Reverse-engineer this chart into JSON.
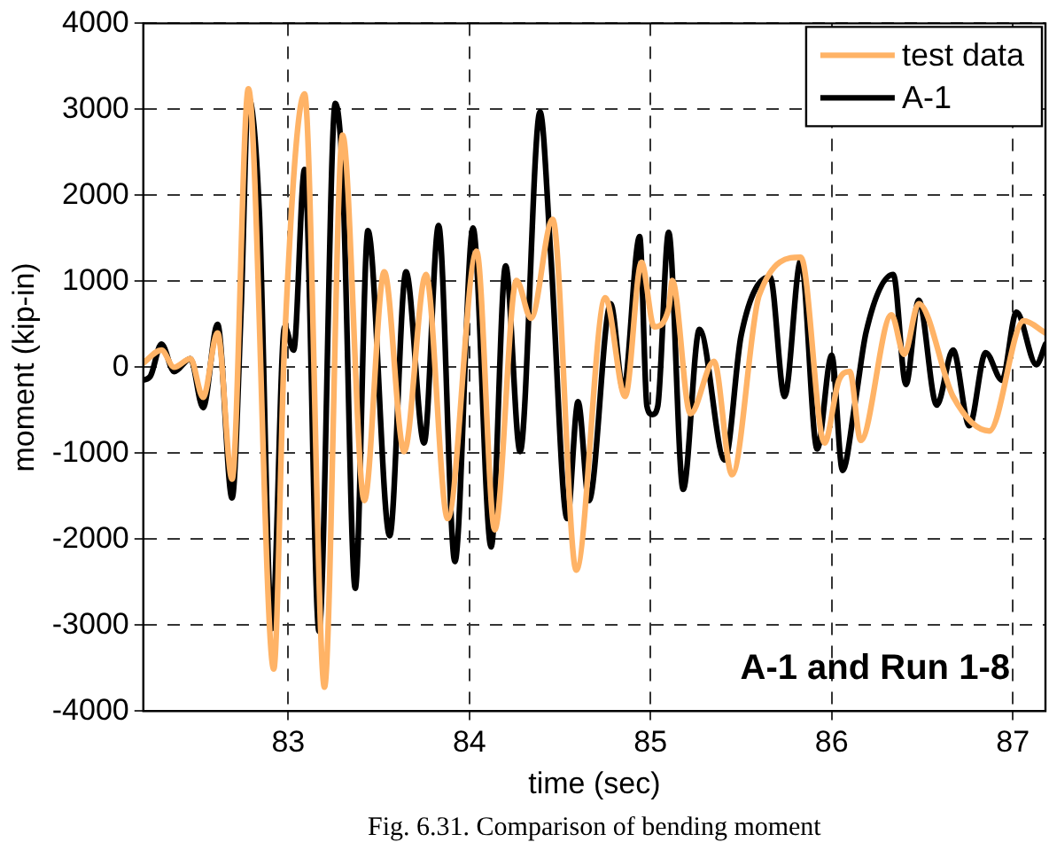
{
  "chart_data": {
    "type": "line",
    "xlabel": "time (sec)",
    "ylabel": "moment (kip-in)",
    "xlim": [
      82.2,
      87.18
    ],
    "xticks": [
      83,
      84,
      85,
      86,
      87
    ],
    "ylim": [
      -4000,
      4000
    ],
    "yticks": [
      -4000,
      -3000,
      -2000,
      -1000,
      0,
      1000,
      2000,
      3000,
      4000
    ],
    "grid": true,
    "legend": "top right",
    "line_style": "solid",
    "annotations": [
      "A-1 and Run 1-8",
      "Fig. 6.31. Comparison of bending moment"
    ],
    "series": [
      {
        "name": "test data",
        "color": "#ffb366",
        "x": [
          82.2,
          82.3,
          82.37,
          82.46,
          82.53,
          82.61,
          82.69,
          82.78,
          82.92,
          82.98,
          83.09,
          83.2,
          83.3,
          83.42,
          83.53,
          83.64,
          83.76,
          83.88,
          84.04,
          84.14,
          84.26,
          84.34,
          84.46,
          84.59,
          84.75,
          84.86,
          84.95,
          85.02,
          85.1,
          85.12,
          85.22,
          85.35,
          85.45,
          85.6,
          85.83,
          85.96,
          86.04,
          86.1,
          86.16,
          86.33,
          86.4,
          86.48,
          86.67,
          86.87,
          87.06,
          87.18
        ],
        "values": [
          50,
          200,
          0,
          100,
          -350,
          400,
          -1300,
          3240,
          -3510,
          300,
          3180,
          -3720,
          2700,
          -1550,
          1110,
          -980,
          1080,
          -1760,
          1350,
          -1890,
          1010,
          570,
          1720,
          -2360,
          810,
          -340,
          1220,
          470,
          680,
          1010,
          -540,
          70,
          -1250,
          840,
          1280,
          -880,
          -150,
          -50,
          -850,
          610,
          150,
          740,
          -340,
          -740,
          540,
          400
        ]
      },
      {
        "name": "A-1",
        "color": "#000000",
        "x": [
          82.2,
          82.24,
          82.3,
          82.37,
          82.46,
          82.53,
          82.61,
          82.69,
          82.74,
          82.78,
          82.84,
          82.91,
          82.98,
          83.03,
          83.09,
          83.17,
          83.26,
          83.3,
          83.37,
          83.44,
          83.56,
          83.65,
          83.75,
          83.83,
          83.92,
          84.02,
          84.12,
          84.2,
          84.28,
          84.39,
          84.45,
          84.54,
          84.6,
          84.66,
          84.78,
          84.85,
          84.94,
          84.98,
          85.01,
          85.04,
          85.1,
          85.18,
          85.27,
          85.41,
          85.5,
          85.66,
          85.74,
          85.83,
          85.92,
          86.0,
          86.06,
          86.13,
          86.19,
          86.34,
          86.41,
          86.48,
          86.58,
          86.67,
          86.76,
          86.85,
          86.94,
          87.02,
          87.13,
          87.18
        ],
        "values": [
          -150,
          -100,
          270,
          -50,
          100,
          -470,
          500,
          -1520,
          680,
          3140,
          1820,
          -3040,
          470,
          200,
          2300,
          -3070,
          3070,
          2230,
          -2570,
          1590,
          -1960,
          1110,
          -880,
          1650,
          -2260,
          1620,
          -2090,
          1180,
          -980,
          2970,
          1280,
          -1760,
          -400,
          -1550,
          740,
          -270,
          1520,
          -450,
          -550,
          -450,
          1570,
          -1420,
          440,
          -1080,
          370,
          1050,
          -340,
          1250,
          -950,
          140,
          -1200,
          -400,
          410,
          1080,
          -200,
          780,
          -440,
          200,
          -680,
          170,
          -150,
          640,
          30,
          270
        ]
      }
    ]
  }
}
